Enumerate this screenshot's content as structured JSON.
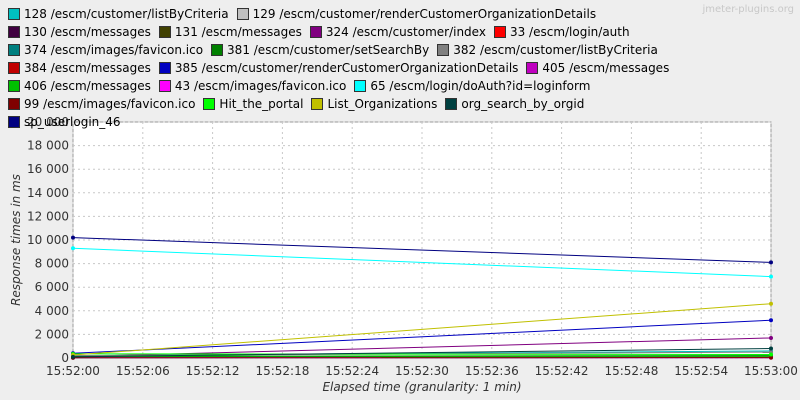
{
  "chart_data": {
    "type": "line",
    "watermark": "jmeter-plugins.org",
    "ylabel": "Response times in ms",
    "xlabel": "Elapsed time (granularity: 1 min)",
    "x": [
      57120,
      57180
    ],
    "xlim": [
      57120,
      57180
    ],
    "xticks": [
      {
        "value": 57120,
        "label": "15:52:00"
      },
      {
        "value": 57126,
        "label": "15:52:06"
      },
      {
        "value": 57132,
        "label": "15:52:12"
      },
      {
        "value": 57138,
        "label": "15:52:18"
      },
      {
        "value": 57144,
        "label": "15:52:24"
      },
      {
        "value": 57150,
        "label": "15:52:30"
      },
      {
        "value": 57156,
        "label": "15:52:36"
      },
      {
        "value": 57162,
        "label": "15:52:42"
      },
      {
        "value": 57168,
        "label": "15:52:48"
      },
      {
        "value": 57174,
        "label": "15:52:54"
      },
      {
        "value": 57180,
        "label": "15:53:00"
      }
    ],
    "ylim": [
      0,
      20000
    ],
    "yticks": [
      0,
      {
        "value": 2000,
        "label": "2 000"
      },
      {
        "value": 4000,
        "label": "4 000"
      },
      {
        "value": 6000,
        "label": "6 000"
      },
      {
        "value": 8000,
        "label": "8 000"
      },
      {
        "value": 10000,
        "label": "10 000"
      },
      {
        "value": 12000,
        "label": "12 000"
      },
      {
        "value": 14000,
        "label": "14 000"
      },
      {
        "value": 16000,
        "label": "16 000"
      },
      {
        "value": 18000,
        "label": "18 000"
      },
      {
        "value": 20000,
        "label": "20 000"
      }
    ],
    "grid": true,
    "series": [
      {
        "name": "128 /escm/customer/listByCriteria",
        "color": "#00c0c0",
        "values": [
          200,
          600
        ]
      },
      {
        "name": "129 /escm/customer/renderCustomerOrganizationDetails",
        "color": "#c0c0c0",
        "values": [
          100,
          150
        ]
      },
      {
        "name": "130 /escm/messages",
        "color": "#400040",
        "values": [
          50,
          80
        ]
      },
      {
        "name": "131 /escm/messages",
        "color": "#404000",
        "values": [
          30,
          60
        ]
      },
      {
        "name": "324 /escm/customer/index",
        "color": "#800080",
        "values": [
          120,
          1700
        ]
      },
      {
        "name": "33 /escm/login/auth",
        "color": "#ff0000",
        "values": [
          100,
          120
        ]
      },
      {
        "name": "374 /escm/images/favicon.ico",
        "color": "#008080",
        "values": [
          20,
          30
        ]
      },
      {
        "name": "381 /escm/customer/setSearchBy",
        "color": "#008000",
        "values": [
          150,
          200
        ]
      },
      {
        "name": "382 /escm/customer/listByCriteria",
        "color": "#808080",
        "values": [
          200,
          500
        ]
      },
      {
        "name": "384 /escm/messages",
        "color": "#c00000",
        "values": [
          60,
          70
        ]
      },
      {
        "name": "385 /escm/customer/renderCustomerOrganizationDetails",
        "color": "#0000c0",
        "values": [
          400,
          3200
        ]
      },
      {
        "name": "405 /escm/messages",
        "color": "#c000c0",
        "values": [
          50,
          100
        ]
      },
      {
        "name": "406 /escm/messages",
        "color": "#00c000",
        "values": [
          80,
          120
        ]
      },
      {
        "name": "43 /escm/images/favicon.ico",
        "color": "#ff00ff",
        "values": [
          30,
          20
        ]
      },
      {
        "name": "65 /escm/login/doAuth?id=loginform",
        "color": "#00ffff",
        "values": [
          9300,
          6900
        ]
      },
      {
        "name": "99 /escm/images/favicon.ico",
        "color": "#800000",
        "values": [
          20,
          30
        ]
      },
      {
        "name": "Hit_the_portal",
        "color": "#00ff00",
        "values": [
          350,
          300
        ]
      },
      {
        "name": "List_Organizations",
        "color": "#c0c000",
        "values": [
          250,
          4600
        ]
      },
      {
        "name": "org_search_by_orgid",
        "color": "#004040",
        "values": [
          100,
          800
        ]
      },
      {
        "name": "sp_userlogin_46",
        "color": "#000080",
        "values": [
          10200,
          8100
        ]
      }
    ]
  }
}
